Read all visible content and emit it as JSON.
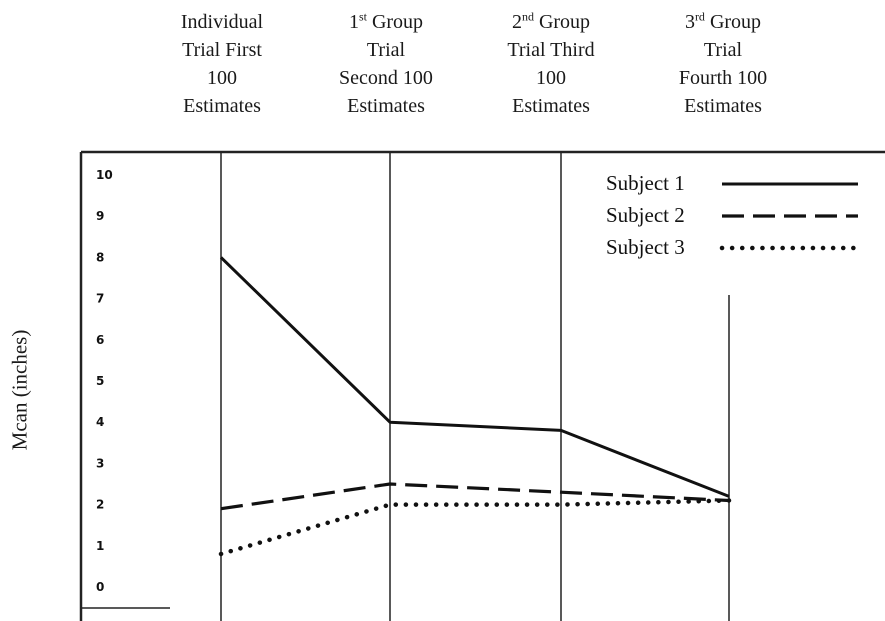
{
  "chart_data": {
    "type": "line",
    "ylabel": "Mcan (inches)",
    "ylim": [
      0,
      10
    ],
    "yticks": [
      "0",
      "1",
      "2",
      "3",
      "4",
      "5",
      "6",
      "7",
      "8",
      "9",
      "10"
    ],
    "categories": [
      {
        "line1": "Individual",
        "line2": "Trial First",
        "line3": "100",
        "line4": "Estimates"
      },
      {
        "ord": "1",
        "sup": "st",
        "tail": " Group",
        "line2": "Trial",
        "line3": "Second 100",
        "line4": "Estimates"
      },
      {
        "ord": "2",
        "sup": "nd",
        "tail": " Group",
        "line2": "Trial Third",
        "line3": "100",
        "line4": "Estimates"
      },
      {
        "ord": "3",
        "sup": "rd",
        "tail": " Group",
        "line2": "Trial",
        "line3": "Fourth 100",
        "line4": "Estimates"
      }
    ],
    "series": [
      {
        "name": "Subject 1",
        "style": "solid",
        "values": [
          8.0,
          4.0,
          3.8,
          2.2
        ]
      },
      {
        "name": "Subject 2",
        "style": "dashed",
        "values": [
          1.9,
          2.5,
          2.3,
          2.1
        ]
      },
      {
        "name": "Subject 3",
        "style": "dotted",
        "values": [
          0.8,
          2.0,
          2.0,
          2.1
        ]
      }
    ],
    "grid": false,
    "legend_position": "top-right",
    "colors": {
      "line": "#111111",
      "axis": "#222222"
    }
  }
}
